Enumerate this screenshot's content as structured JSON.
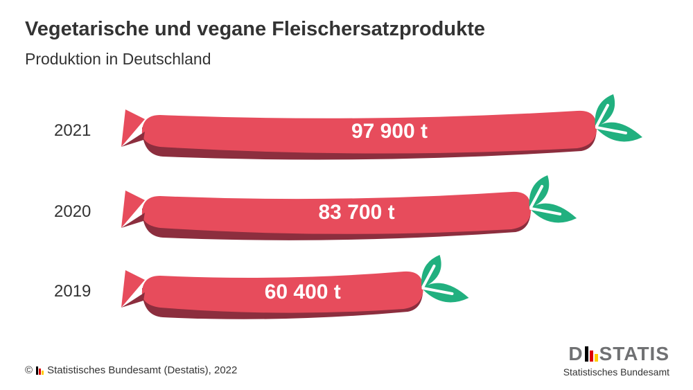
{
  "header": {
    "title": "Vegetarische und vegane Fleischersatzprodukte",
    "subtitle": "Produktion in Deutschland"
  },
  "chart_data": {
    "type": "bar",
    "orientation": "horizontal",
    "title": "Vegetarische und vegane Fleischersatzprodukte",
    "subtitle": "Produktion in Deutschland",
    "categories": [
      "2021",
      "2020",
      "2019"
    ],
    "values": [
      97900,
      83700,
      60400
    ],
    "value_labels": [
      "97 900 t",
      "83 700 t",
      "60 400 t"
    ],
    "unit": "t",
    "grid": false,
    "legend": "none",
    "colors": {
      "sausage": "#e74c5c",
      "sausage_shadow": "#8c2e3e",
      "leaf": "#21b07f"
    }
  },
  "footer": {
    "copyright_symbol": "©",
    "source": "Statistisches Bundesamt (Destatis), 2022"
  },
  "logo": {
    "letter_d": "D",
    "letters_rest": "STATIS",
    "subtitle": "Statistisches Bundesamt",
    "bar_colors": [
      "#000000",
      "#dd0000",
      "#ffcc00"
    ]
  }
}
